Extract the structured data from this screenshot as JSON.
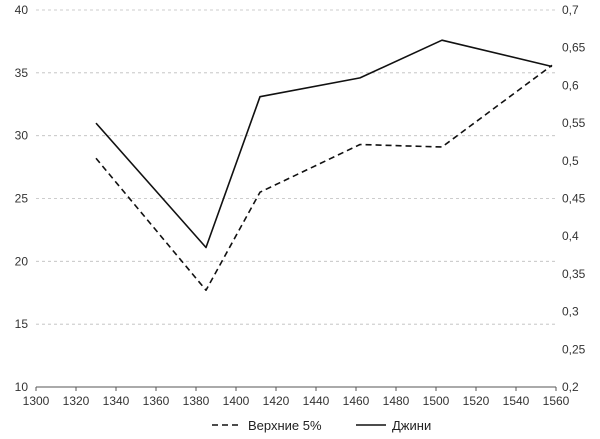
{
  "chart_data": {
    "type": "line",
    "x_ticks": [
      1300,
      1320,
      1340,
      1360,
      1380,
      1400,
      1420,
      1440,
      1460,
      1480,
      1500,
      1520,
      1540,
      1560
    ],
    "xlim": [
      1300,
      1560
    ],
    "y_left": {
      "ylim": [
        10,
        40
      ],
      "ticks": [
        10,
        15,
        20,
        25,
        30,
        35,
        40
      ],
      "tick_labels": [
        "10",
        "15",
        "20",
        "25",
        "30",
        "35",
        "40"
      ]
    },
    "y_right": {
      "ylim": [
        0.2,
        0.7
      ],
      "ticks": [
        0.2,
        0.25,
        0.3,
        0.35,
        0.4,
        0.45,
        0.5,
        0.55,
        0.6,
        0.65,
        0.7
      ],
      "tick_labels": [
        "0,2",
        "0,25",
        "0,3",
        "0,35",
        "0,4",
        "0,45",
        "0,5",
        "0,55",
        "0,6",
        "0,65",
        "0,7"
      ]
    },
    "grid": true,
    "legend_position": "bottom-center",
    "series": [
      {
        "name": "Верхние 5%",
        "axis": "left",
        "style": "dashed",
        "color": "#111111",
        "x": [
          1330,
          1385,
          1412,
          1462,
          1503,
          1558
        ],
        "y": [
          28.2,
          17.7,
          25.5,
          29.3,
          29.1,
          35.6
        ]
      },
      {
        "name": "Джини",
        "axis": "right",
        "style": "solid",
        "color": "#111111",
        "x": [
          1330,
          1385,
          1412,
          1462,
          1503,
          1558
        ],
        "y": [
          0.55,
          0.385,
          0.585,
          0.61,
          0.66,
          0.625
        ]
      }
    ]
  }
}
